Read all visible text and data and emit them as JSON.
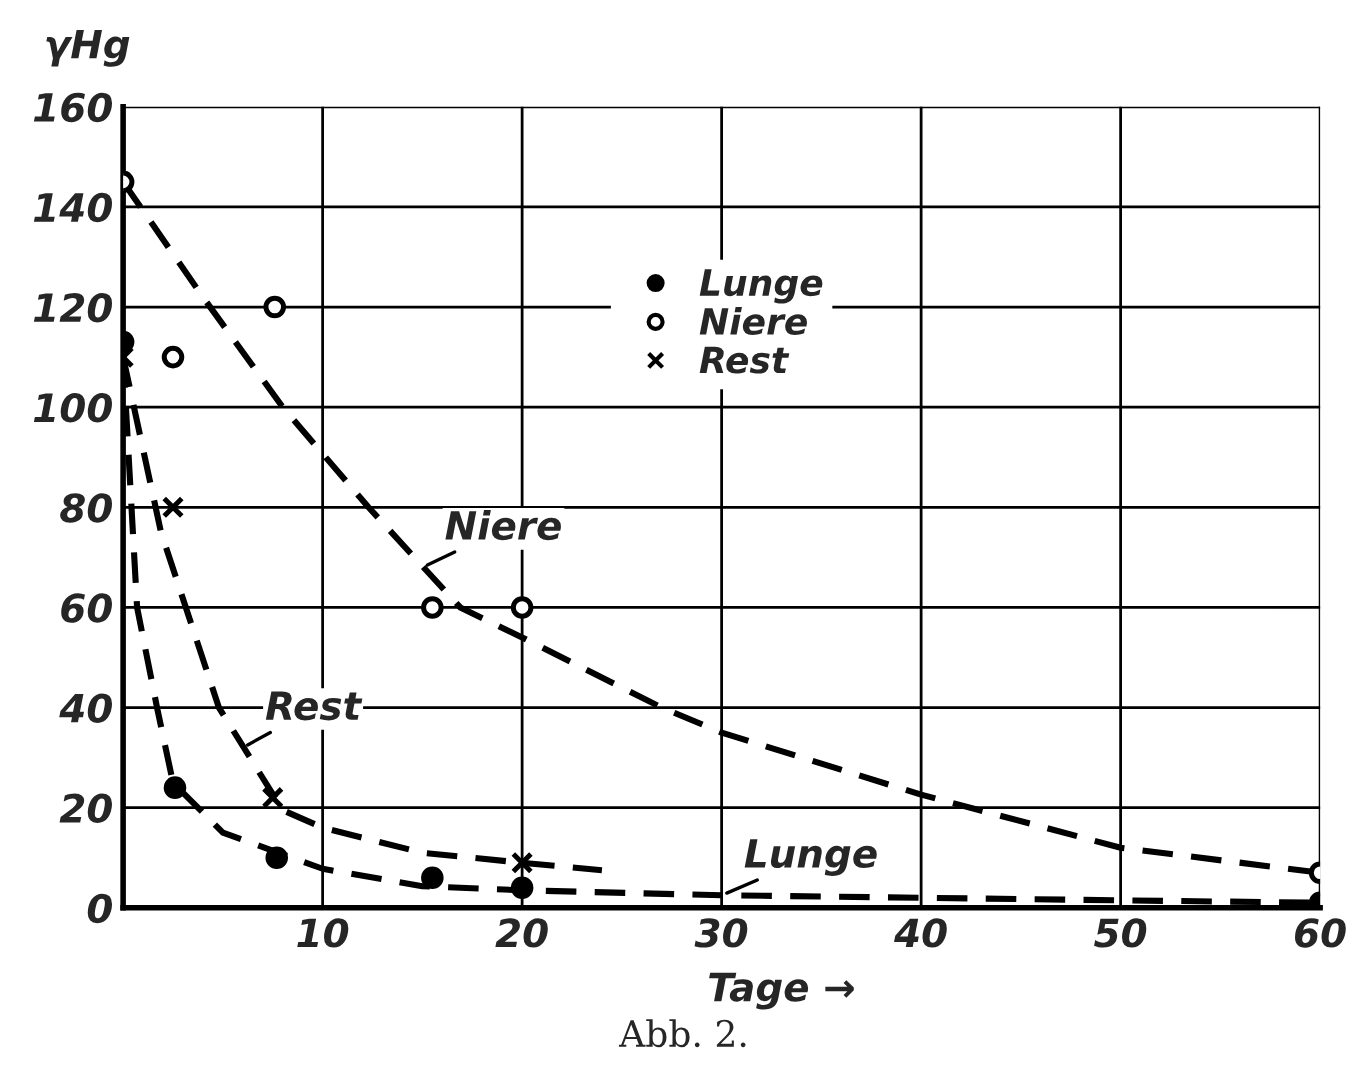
{
  "chart_data": {
    "type": "scatter",
    "xlabel": "Tage →",
    "ylabel": "γHg",
    "series": [
      {
        "name": "Lunge",
        "marker": "circle",
        "color": "#000000",
        "x": [
          0,
          2.6,
          7.7,
          15.5,
          20,
          60
        ],
        "values": [
          113,
          24,
          10,
          6,
          4,
          1
        ]
      },
      {
        "name": "Niere",
        "marker": "circle",
        "color": "#ffffff",
        "x": [
          0,
          2.5,
          7.6,
          15.5,
          20,
          60
        ],
        "values": [
          145,
          110,
          120,
          60,
          60,
          7
        ]
      },
      {
        "name": "Rest",
        "marker": "cross",
        "color": "#000000",
        "x": [
          0,
          2.5,
          7.5,
          20
        ],
        "values": [
          110,
          80,
          22,
          9
        ]
      },
      {
        "type": "line",
        "line_style": "dashed",
        "color": "#000000",
        "x": [
          0,
          4,
          8,
          12.3,
          16.9,
          20,
          27,
          30,
          40,
          50,
          60
        ],
        "values": [
          145,
          122,
          100,
          80,
          60,
          54,
          40,
          35,
          22.6,
          12,
          7
        ]
      },
      {
        "type": "line",
        "line_style": "dashed",
        "color": "#000000",
        "x": [
          0,
          1.9,
          4.8,
          8,
          10,
          15,
          20,
          24
        ],
        "values": [
          110,
          75,
          40,
          19.5,
          16,
          11,
          9,
          7.5
        ]
      },
      {
        "type": "line",
        "line_style": "dashed",
        "color": "#000000",
        "x": [
          0,
          0.7,
          1.7,
          2.5,
          5,
          10,
          15,
          20,
          30,
          40,
          60
        ],
        "values": [
          110,
          60,
          40,
          25,
          15,
          7.8,
          4.3,
          3.5,
          2.5,
          2,
          1
        ]
      }
    ],
    "xlim": [
      0,
      60
    ],
    "ylim": [
      0,
      160
    ],
    "xticks": [
      {
        "value": 0,
        "label": null
      },
      10,
      20,
      30,
      40,
      50,
      60
    ],
    "yticks": [
      0,
      20,
      40,
      60,
      80,
      100,
      120,
      140,
      160
    ],
    "grid": true,
    "legend": "top",
    "annotations": [
      {
        "text": "Niere",
        "x": 15,
        "y": 68
      },
      {
        "text": "Rest",
        "x": 6,
        "y": 32
      },
      {
        "text": "Lunge",
        "x": 30,
        "y": 2.5
      },
      "Abb. 2."
    ]
  }
}
